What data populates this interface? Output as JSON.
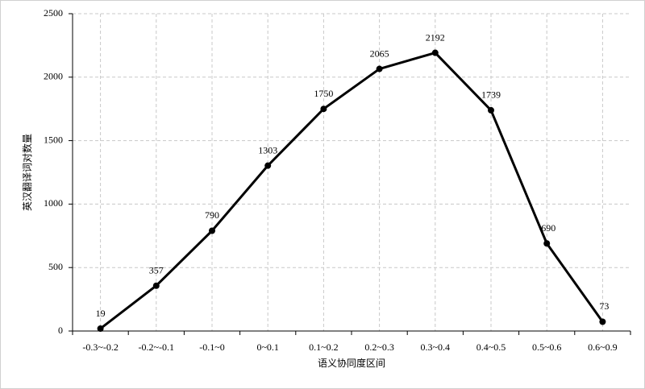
{
  "chart_data": {
    "type": "line",
    "x_label": "语义协同度区间",
    "y_label": "英汉翻译词对数量",
    "categories": [
      "-0.3~-0.2",
      "-0.2~-0.1",
      "-0.1~0",
      "0~0.1",
      "0.1~0.2",
      "0.2~0.3",
      "0.3~0.4",
      "0.4~0.5",
      "0.5~0.6",
      "0.6~0.9"
    ],
    "values": [
      19,
      357,
      790,
      1303,
      1750,
      2065,
      2192,
      1739,
      690,
      73
    ],
    "color": "#000000",
    "ylim": [
      0,
      2500
    ],
    "yticks": [
      0,
      500,
      1000,
      1500,
      2000,
      2500
    ],
    "grid": true
  }
}
